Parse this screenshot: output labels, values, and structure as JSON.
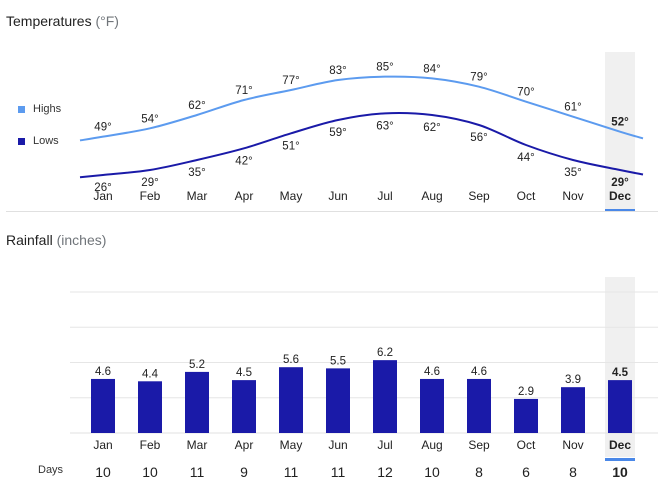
{
  "temperature": {
    "title": "Temperatures",
    "unit": "(°F)",
    "legend": {
      "highs": "Highs",
      "lows": "Lows",
      "highs_color": "#5c9bef",
      "lows_color": "#1a1aa8"
    }
  },
  "rainfall": {
    "title": "Rainfall",
    "unit": "(inches)",
    "days_label": "Days",
    "bar_color": "#1a1aa8"
  },
  "selected_month": "Dec",
  "chart_data": [
    {
      "type": "line",
      "title": "Temperatures (°F)",
      "categories": [
        "Jan",
        "Feb",
        "Mar",
        "Apr",
        "May",
        "Jun",
        "Jul",
        "Aug",
        "Sep",
        "Oct",
        "Nov",
        "Dec"
      ],
      "series": [
        {
          "name": "Highs",
          "values": [
            49,
            54,
            62,
            71,
            77,
            83,
            85,
            84,
            79,
            70,
            61,
            52
          ],
          "labels": [
            "49°",
            "54°",
            "62°",
            "71°",
            "77°",
            "83°",
            "85°",
            "84°",
            "79°",
            "70°",
            "61°",
            "52°"
          ]
        },
        {
          "name": "Lows",
          "values": [
            26,
            29,
            35,
            42,
            51,
            59,
            63,
            62,
            56,
            44,
            35,
            29
          ],
          "labels": [
            "26°",
            "29°",
            "35°",
            "42°",
            "51°",
            "59°",
            "63°",
            "62°",
            "56°",
            "44°",
            "35°",
            "29°"
          ]
        }
      ],
      "ylim": [
        20,
        95
      ],
      "legend": "left"
    },
    {
      "type": "bar",
      "title": "Rainfall (inches)",
      "categories": [
        "Jan",
        "Feb",
        "Mar",
        "Apr",
        "May",
        "Jun",
        "Jul",
        "Aug",
        "Sep",
        "Oct",
        "Nov",
        "Dec"
      ],
      "values": [
        4.6,
        4.4,
        5.2,
        4.5,
        5.6,
        5.5,
        6.2,
        4.6,
        4.6,
        2.9,
        3.9,
        4.5
      ],
      "labels": [
        "4.6",
        "4.4",
        "5.2",
        "4.5",
        "5.6",
        "5.5",
        "6.2",
        "4.6",
        "4.6",
        "2.9",
        "3.9",
        "4.5"
      ],
      "days": [
        "10",
        "10",
        "11",
        "9",
        "11",
        "11",
        "12",
        "10",
        "8",
        "6",
        "8",
        "10"
      ],
      "ylim": [
        0,
        12
      ],
      "grid": true
    }
  ]
}
